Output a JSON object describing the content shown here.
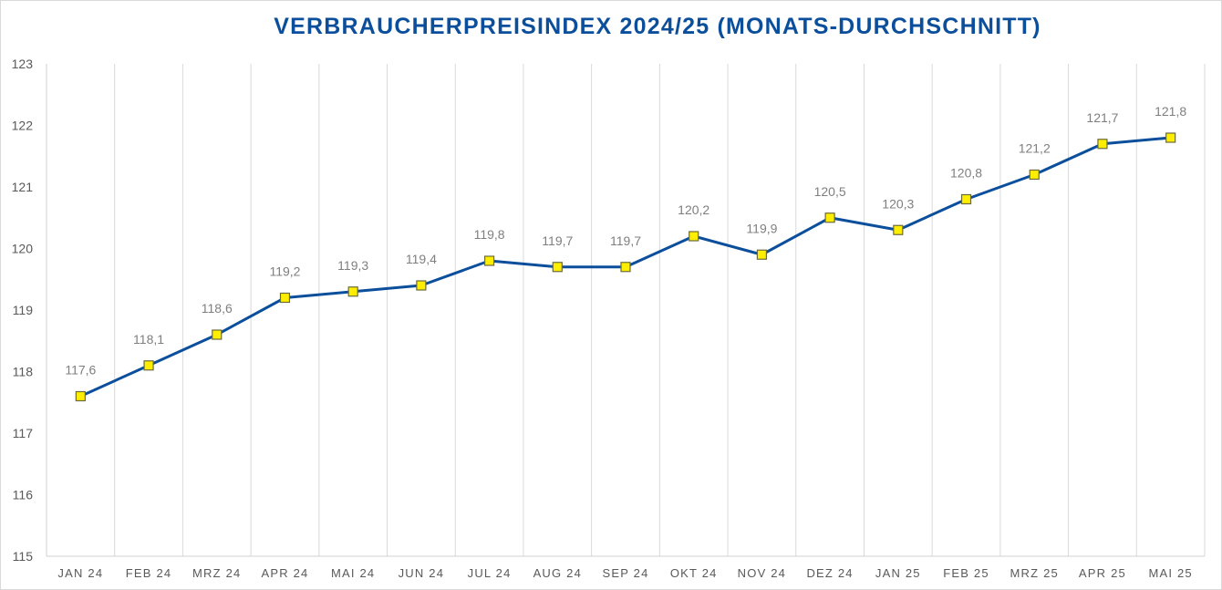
{
  "chart_data": {
    "type": "line",
    "title": "VERBRAUCHERPREISINDEX 2024/25 (MONATS-DURCHSCHNITT)",
    "xlabel": "",
    "ylabel": "",
    "categories": [
      "JAN 24",
      "FEB 24",
      "MRZ 24",
      "APR 24",
      "MAI 24",
      "JUN 24",
      "JUL 24",
      "AUG 24",
      "SEP 24",
      "OKT 24",
      "NOV 24",
      "DEZ 24",
      "JAN 25",
      "FEB 25",
      "MRZ 25",
      "APR 25",
      "MAI 25"
    ],
    "values": [
      117.6,
      118.1,
      118.6,
      119.2,
      119.3,
      119.4,
      119.8,
      119.7,
      119.7,
      120.2,
      119.9,
      120.5,
      120.3,
      120.8,
      121.2,
      121.7,
      121.8
    ],
    "value_labels": [
      "117,6",
      "118,1",
      "118,6",
      "119,2",
      "119,3",
      "119,4",
      "119,8",
      "119,7",
      "119,7",
      "120,2",
      "119,9",
      "120,5",
      "120,3",
      "120,8",
      "121,2",
      "121,7",
      "121,8"
    ],
    "ylim": [
      115,
      123
    ],
    "yticks": [
      "115",
      "116",
      "117",
      "118",
      "119",
      "120",
      "121",
      "122",
      "123"
    ],
    "grid": "vertical",
    "legend": "none",
    "colors": {
      "line": "#0b4f9c",
      "marker_fill": "#ffee00",
      "title": "#0b4f9c"
    }
  }
}
